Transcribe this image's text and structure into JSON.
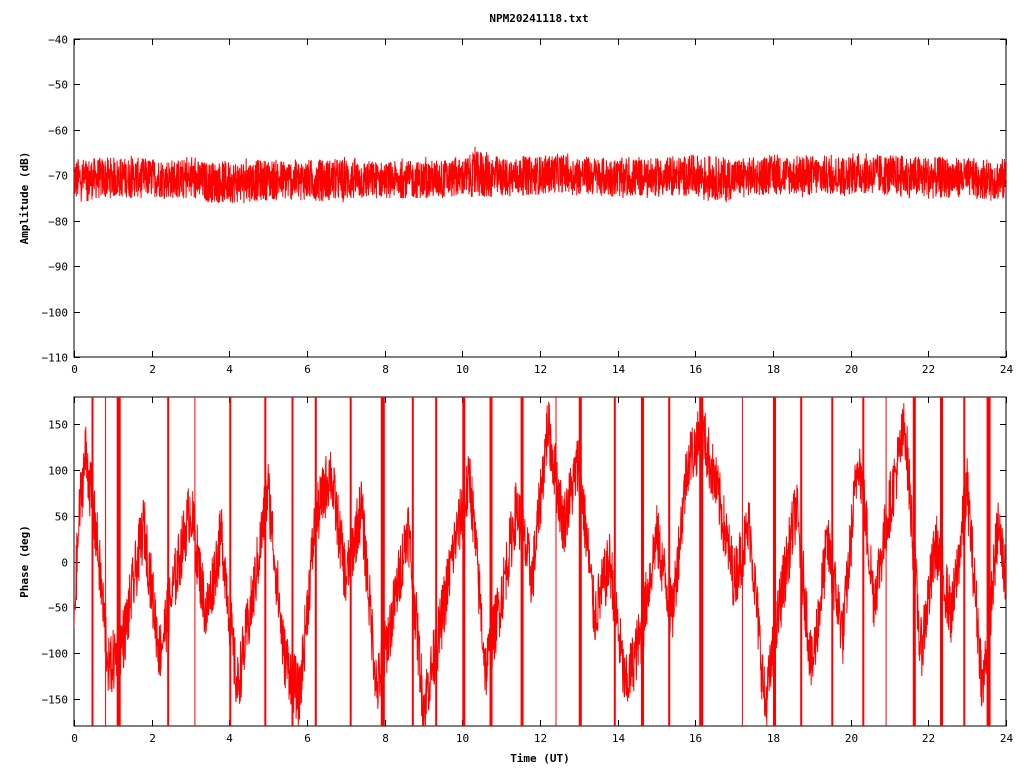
{
  "title": "NPM20241118.txt",
  "colors": {
    "series": "#ff0000",
    "frame": "#000000",
    "background": "#ffffff"
  },
  "chart_data": [
    {
      "type": "line",
      "title": "NPM20241118.txt",
      "xlabel": "",
      "ylabel": "Amplitude (dB)",
      "xlim": [
        0,
        24
      ],
      "ylim": [
        -110,
        -40
      ],
      "xticks": [
        "0",
        "2",
        "4",
        "6",
        "8",
        "10",
        "12",
        "14",
        "16",
        "18",
        "20",
        "22",
        "24"
      ],
      "yticks": [
        "-40",
        "-50",
        "-60",
        "-70",
        "-80",
        "-90",
        "-100",
        "-110"
      ],
      "grid": false,
      "series": [
        {
          "x": [
            0,
            1,
            2,
            3,
            3.5,
            4,
            5,
            6,
            7,
            8,
            9,
            10,
            10.5,
            11,
            12,
            12.5,
            13,
            14,
            15,
            16,
            16.8,
            17,
            18,
            19,
            20,
            20.2,
            21,
            22,
            23,
            24
          ],
          "y": [
            -71,
            -70.5,
            -70.5,
            -71,
            -71.5,
            -71.5,
            -71,
            -71,
            -71,
            -71,
            -71,
            -70.5,
            -70,
            -70.5,
            -70,
            -69.5,
            -70,
            -70.5,
            -70.5,
            -70,
            -71,
            -70.5,
            -70,
            -70,
            -70,
            -69.5,
            -70,
            -70.5,
            -70.5,
            -71
          ],
          "min": [
            -76,
            -75,
            -75,
            -75.5,
            -76,
            -76.5,
            -75.5,
            -75.5,
            -76,
            -75,
            -75,
            -75,
            -74.5,
            -75,
            -74.5,
            -74,
            -74.5,
            -75,
            -75,
            -75,
            -76.5,
            -75,
            -74.5,
            -75,
            -74.5,
            -74,
            -75,
            -76,
            -75,
            -76
          ],
          "max": [
            -66,
            -65.5,
            -66,
            -66,
            -66.5,
            -66.5,
            -66,
            -66,
            -66,
            -66.5,
            -66,
            -66,
            -62.5,
            -66,
            -65.5,
            -65,
            -65.5,
            -66,
            -66,
            -65.5,
            -66,
            -66,
            -65.5,
            -65.5,
            -65.5,
            -64.5,
            -65.5,
            -66,
            -66,
            -66
          ]
        }
      ]
    },
    {
      "type": "line",
      "title": "",
      "xlabel": "Time (UT)",
      "ylabel": "Phase (deg)",
      "xlim": [
        0,
        24
      ],
      "ylim": [
        -180,
        180
      ],
      "xticks": [
        "0",
        "2",
        "4",
        "6",
        "8",
        "10",
        "12",
        "14",
        "16",
        "18",
        "20",
        "22",
        "24"
      ],
      "yticks": [
        "150",
        "100",
        "50",
        "0",
        "-50",
        "-100",
        "-150"
      ],
      "grid": false,
      "series": [
        {
          "x": [
            0,
            0.15,
            0.3,
            0.6,
            0.9,
            1.3,
            1.8,
            2.2,
            2.6,
            3.0,
            3.4,
            3.8,
            4.2,
            4.6,
            5.0,
            5.4,
            5.8,
            6.2,
            6.6,
            7.0,
            7.4,
            7.8,
            8.2,
            8.6,
            9.0,
            9.4,
            9.8,
            10.2,
            10.6,
            11.0,
            11.4,
            11.8,
            12.2,
            12.6,
            13.0,
            13.4,
            13.8,
            14.2,
            14.6,
            15.0,
            15.4,
            15.8,
            16.2,
            16.6,
            17.0,
            17.4,
            17.8,
            18.2,
            18.6,
            19.0,
            19.4,
            19.8,
            20.2,
            20.6,
            21.0,
            21.4,
            21.8,
            22.2,
            22.6,
            23.0,
            23.4,
            23.8,
            24
          ],
          "y": [
            -60,
            60,
            120,
            20,
            -120,
            -80,
            40,
            -100,
            -20,
            60,
            -60,
            30,
            -140,
            -40,
            80,
            -100,
            -150,
            40,
            100,
            -20,
            60,
            -140,
            -60,
            40,
            -160,
            -80,
            20,
            90,
            -120,
            -40,
            60,
            -20,
            150,
            40,
            110,
            -60,
            0,
            -140,
            -80,
            30,
            -60,
            110,
            140,
            70,
            -20,
            40,
            -160,
            -40,
            60,
            -120,
            20,
            -80,
            120,
            -40,
            60,
            150,
            -100,
            20,
            -60,
            80,
            -140,
            40,
            -20
          ],
          "spikes_x": [
            0.45,
            0.8,
            1.1,
            2.4,
            3.1,
            4.0,
            4.9,
            5.6,
            6.2,
            7.1,
            7.9,
            8.7,
            9.3,
            10.0,
            10.7,
            11.5,
            12.4,
            13.0,
            13.9,
            14.6,
            15.3,
            16.1,
            17.2,
            18.0,
            18.7,
            19.5,
            20.3,
            20.9,
            21.6,
            22.3,
            22.9,
            23.5
          ]
        }
      ]
    }
  ]
}
